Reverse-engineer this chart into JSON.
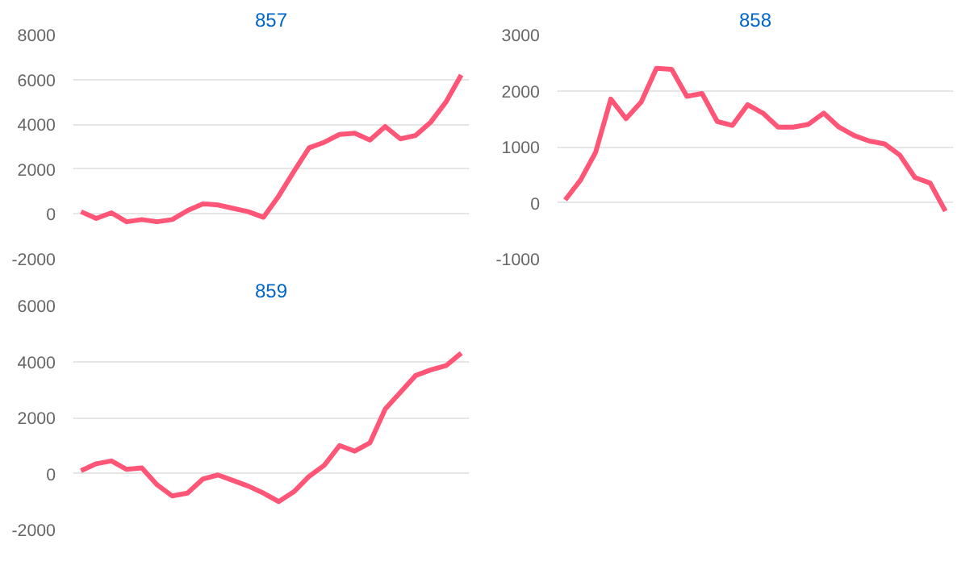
{
  "chart_data": [
    {
      "type": "line",
      "title": "857",
      "categories": [
        null,
        null,
        null,
        null,
        null,
        null,
        null,
        null,
        null,
        null,
        null,
        null,
        null,
        null,
        null,
        null,
        null,
        null,
        null,
        null,
        null,
        null,
        null,
        null,
        null,
        null
      ],
      "series": [
        {
          "color": "#ff5577",
          "values": [
            100,
            -200,
            50,
            -350,
            -250,
            -350,
            -250,
            150,
            450,
            400,
            250,
            100,
            -150,
            800,
            1900,
            2950,
            3200,
            3550,
            3600,
            3300,
            3900,
            3350,
            3500,
            4100,
            5000,
            6200
          ]
        }
      ],
      "ylim": [
        -2000,
        8000
      ],
      "yticks": [
        -2000,
        0,
        2000,
        4000,
        6000,
        8000
      ],
      "grid": "y",
      "tick_labels": "y",
      "marker": "none",
      "line_style": "solid"
    },
    {
      "type": "line",
      "title": "858",
      "categories": [
        null,
        null,
        null,
        null,
        null,
        null,
        null,
        null,
        null,
        null,
        null,
        null,
        null,
        null,
        null,
        null,
        null,
        null,
        null,
        null,
        null,
        null,
        null,
        null,
        null,
        null
      ],
      "series": [
        {
          "color": "#ff5577",
          "values": [
            50,
            400,
            900,
            1850,
            1500,
            1800,
            2400,
            2380,
            1900,
            1950,
            1450,
            1380,
            1750,
            1600,
            1350,
            1350,
            1400,
            1600,
            1350,
            1200,
            1100,
            1050,
            850,
            450,
            350,
            -150
          ]
        }
      ],
      "ylim": [
        -1000,
        3000
      ],
      "yticks": [
        -1000,
        0,
        1000,
        2000,
        3000
      ],
      "grid": "y",
      "tick_labels": "y",
      "marker": "none",
      "line_style": "solid"
    },
    {
      "type": "line",
      "title": "859",
      "categories": [
        null,
        null,
        null,
        null,
        null,
        null,
        null,
        null,
        null,
        null,
        null,
        null,
        null,
        null,
        null,
        null,
        null,
        null,
        null,
        null,
        null,
        null,
        null,
        null,
        null,
        null
      ],
      "series": [
        {
          "color": "#ff5577",
          "values": [
            100,
            350,
            450,
            150,
            200,
            -400,
            -800,
            -700,
            -200,
            -50,
            -250,
            -450,
            -700,
            -1000,
            -650,
            -100,
            300,
            1000,
            800,
            1100,
            2300,
            2900,
            3500,
            3700,
            3850,
            4300
          ]
        }
      ],
      "ylim": [
        -2000,
        6000
      ],
      "yticks": [
        -2000,
        0,
        2000,
        4000,
        6000
      ],
      "grid": "y",
      "tick_labels": "y",
      "marker": "none",
      "line_style": "solid"
    }
  ]
}
